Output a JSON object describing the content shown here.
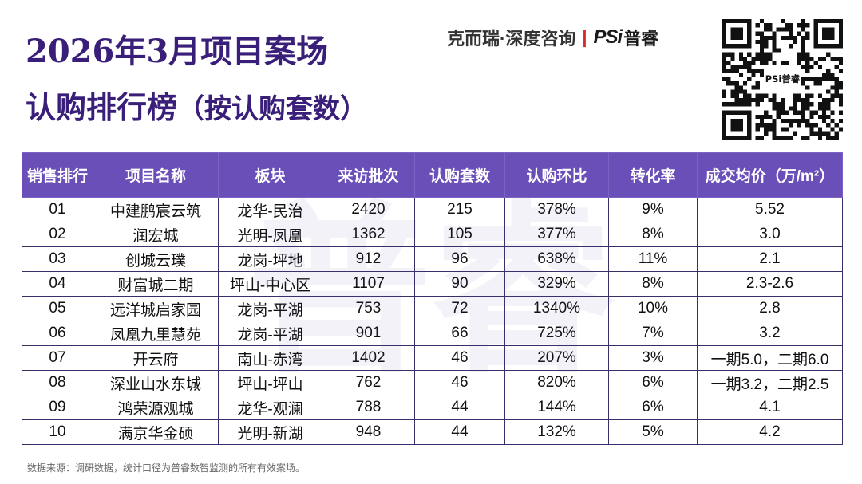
{
  "title": {
    "line1": "2026年3月项目案场",
    "line2_main": "认购排行榜",
    "line2_sub": "（按认购套数）"
  },
  "brand": {
    "text": "克而瑞·深度咨询",
    "separator": "|",
    "logo": "PSi",
    "logo_cn": "普睿",
    "accent_color": "#d8292f"
  },
  "qr": {
    "center_logo": "PSi普睿"
  },
  "watermark": "普睿",
  "colors": {
    "header_bg": "#6b4fb8",
    "title": "#3a1f7a",
    "grid": "#3a2e6a"
  },
  "table": {
    "headers": [
      "销售排行",
      "项目名称",
      "板块",
      "来访批次",
      "认购套数",
      "认购环比",
      "转化率",
      "成交均价（万/m²）"
    ],
    "rows": [
      [
        "01",
        "中建鹏宸云筑",
        "龙华-民治",
        "2420",
        "215",
        "378%",
        "9%",
        "5.52"
      ],
      [
        "02",
        "润宏城",
        "光明-凤凰",
        "1362",
        "105",
        "377%",
        "8%",
        "3.0"
      ],
      [
        "03",
        "创城云璞",
        "龙岗-坪地",
        "912",
        "96",
        "638%",
        "11%",
        "2.1"
      ],
      [
        "04",
        "财富城二期",
        "坪山-中心区",
        "1107",
        "90",
        "329%",
        "8%",
        "2.3-2.6"
      ],
      [
        "05",
        "远洋城启家园",
        "龙岗-平湖",
        "753",
        "72",
        "1340%",
        "10%",
        "2.8"
      ],
      [
        "06",
        "凤凰九里慧苑",
        "龙岗-平湖",
        "901",
        "66",
        "725%",
        "7%",
        "3.2"
      ],
      [
        "07",
        "开云府",
        "南山-赤湾",
        "1402",
        "46",
        "207%",
        "3%",
        "一期5.0，二期6.0"
      ],
      [
        "08",
        "深业山水东城",
        "坪山-坪山",
        "762",
        "46",
        "820%",
        "6%",
        "一期3.2，二期2.5"
      ],
      [
        "09",
        "鸿荣源观城",
        "龙华-观澜",
        "788",
        "44",
        "144%",
        "6%",
        "4.1"
      ],
      [
        "10",
        "满京华金硕",
        "光明-新湖",
        "948",
        "44",
        "132%",
        "5%",
        "4.2"
      ]
    ]
  },
  "footer": {
    "source": "数据来源：调研数据，统计口径为普睿数智监测的所有有效案场。"
  }
}
